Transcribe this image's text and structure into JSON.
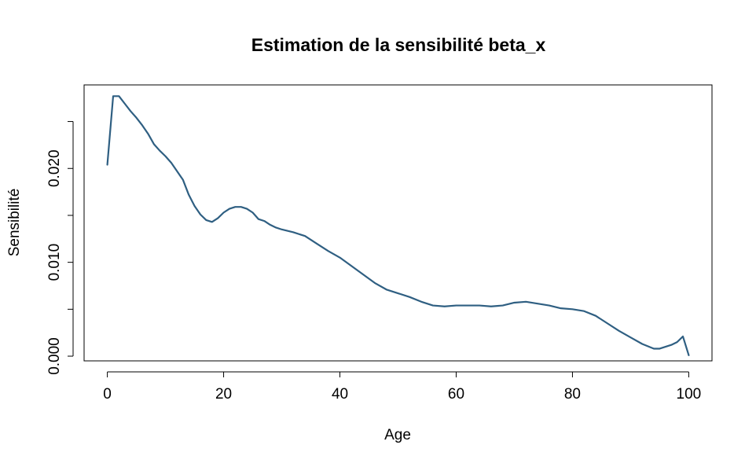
{
  "chart_data": {
    "type": "line",
    "title": "Estimation de la sensibilité beta_x",
    "xlabel": "Age",
    "ylabel": "Sensibilité",
    "xlim": [
      -4,
      104
    ],
    "ylim": [
      -0.0005,
      0.0289
    ],
    "x_ticks": [
      0,
      20,
      40,
      60,
      80,
      100
    ],
    "x_tick_labels": [
      "0",
      "20",
      "40",
      "60",
      "80",
      "100"
    ],
    "y_ticks": [
      0.0,
      0.005,
      0.01,
      0.015,
      0.02,
      0.025
    ],
    "y_tick_labels": [
      "0.000",
      "",
      "0.010",
      "",
      "0.020",
      ""
    ],
    "grid": false,
    "legend": "none",
    "series": [
      {
        "color": "#2f5f82",
        "x": [
          0,
          1,
          2,
          3,
          4,
          5,
          6,
          7,
          8,
          9,
          10,
          11,
          12,
          13,
          14,
          15,
          16,
          17,
          18,
          19,
          20,
          21,
          22,
          23,
          24,
          25,
          26,
          27,
          28,
          29,
          30,
          32,
          34,
          36,
          38,
          40,
          42,
          44,
          46,
          48,
          50,
          52,
          54,
          56,
          58,
          60,
          62,
          64,
          66,
          68,
          70,
          72,
          74,
          76,
          78,
          80,
          82,
          84,
          86,
          88,
          90,
          92,
          94,
          95,
          96,
          97,
          98,
          99,
          100
        ],
        "y": [
          0.0204,
          0.0277,
          0.0277,
          0.0269,
          0.0261,
          0.0254,
          0.0246,
          0.0237,
          0.0226,
          0.0219,
          0.0213,
          0.0206,
          0.0197,
          0.0188,
          0.0172,
          0.016,
          0.0151,
          0.0145,
          0.0143,
          0.0147,
          0.0153,
          0.0157,
          0.0159,
          0.0159,
          0.0157,
          0.0153,
          0.0146,
          0.0144,
          0.014,
          0.0137,
          0.0135,
          0.0132,
          0.0128,
          0.012,
          0.0112,
          0.0105,
          0.0096,
          0.0087,
          0.0078,
          0.0071,
          0.0067,
          0.0063,
          0.0058,
          0.0054,
          0.0053,
          0.0054,
          0.0054,
          0.0054,
          0.0053,
          0.0054,
          0.0057,
          0.0058,
          0.0056,
          0.0054,
          0.0051,
          0.005,
          0.0048,
          0.0043,
          0.0035,
          0.0027,
          0.002,
          0.0013,
          0.0008,
          0.0008,
          0.001,
          0.0012,
          0.0015,
          0.0021,
          0.0001
        ]
      }
    ]
  }
}
